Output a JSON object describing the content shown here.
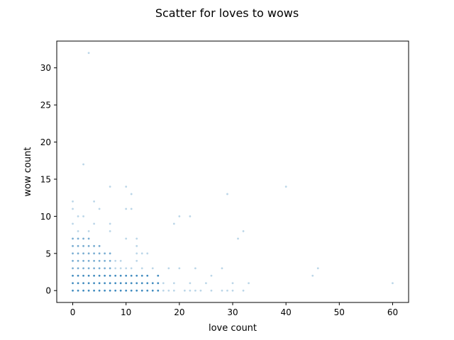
{
  "chart_data": {
    "type": "scatter",
    "title": "Scatter for loves to wows",
    "xlabel": "love count",
    "ylabel": "wow count",
    "xlim": [
      -3,
      63
    ],
    "ylim": [
      -1.6,
      33.6
    ],
    "xticks": [
      "0",
      "10",
      "20",
      "30",
      "40",
      "50",
      "60"
    ],
    "yticks": [
      "0",
      "5",
      "10",
      "15",
      "20",
      "25",
      "30"
    ],
    "grid": false,
    "color": "#1f77b4",
    "points": [
      [
        3,
        32
      ],
      [
        2,
        17
      ],
      [
        7,
        14
      ],
      [
        10,
        14
      ],
      [
        40,
        14
      ],
      [
        11,
        13
      ],
      [
        29,
        13
      ],
      [
        0,
        12
      ],
      [
        4,
        12
      ],
      [
        0,
        11
      ],
      [
        5,
        11
      ],
      [
        10,
        11
      ],
      [
        11,
        11
      ],
      [
        1,
        10
      ],
      [
        2,
        10
      ],
      [
        20,
        10
      ],
      [
        22,
        10
      ],
      [
        0,
        9
      ],
      [
        4,
        9
      ],
      [
        7,
        9
      ],
      [
        19,
        9
      ],
      [
        1,
        8
      ],
      [
        3,
        8
      ],
      [
        7,
        8
      ],
      [
        32,
        8
      ],
      [
        0,
        7
      ],
      [
        1,
        7
      ],
      [
        2,
        7
      ],
      [
        3,
        7
      ],
      [
        10,
        7
      ],
      [
        12,
        7
      ],
      [
        31,
        7
      ],
      [
        0,
        6
      ],
      [
        1,
        6
      ],
      [
        2,
        6
      ],
      [
        3,
        6
      ],
      [
        4,
        6
      ],
      [
        5,
        6
      ],
      [
        12,
        6
      ],
      [
        0,
        5
      ],
      [
        1,
        5
      ],
      [
        2,
        5
      ],
      [
        3,
        5
      ],
      [
        4,
        5
      ],
      [
        5,
        5
      ],
      [
        6,
        5
      ],
      [
        7,
        5
      ],
      [
        12,
        5
      ],
      [
        13,
        5
      ],
      [
        14,
        5
      ],
      [
        0,
        4
      ],
      [
        1,
        4
      ],
      [
        2,
        4
      ],
      [
        3,
        4
      ],
      [
        4,
        4
      ],
      [
        5,
        4
      ],
      [
        6,
        4
      ],
      [
        7,
        4
      ],
      [
        8,
        4
      ],
      [
        9,
        4
      ],
      [
        12,
        4
      ],
      [
        0,
        3
      ],
      [
        1,
        3
      ],
      [
        2,
        3
      ],
      [
        3,
        3
      ],
      [
        4,
        3
      ],
      [
        5,
        3
      ],
      [
        6,
        3
      ],
      [
        7,
        3
      ],
      [
        8,
        3
      ],
      [
        9,
        3
      ],
      [
        10,
        3
      ],
      [
        11,
        3
      ],
      [
        13,
        3
      ],
      [
        15,
        3
      ],
      [
        18,
        3
      ],
      [
        20,
        3
      ],
      [
        23,
        3
      ],
      [
        28,
        3
      ],
      [
        46,
        3
      ],
      [
        0,
        2
      ],
      [
        1,
        2
      ],
      [
        2,
        2
      ],
      [
        3,
        2
      ],
      [
        4,
        2
      ],
      [
        5,
        2
      ],
      [
        6,
        2
      ],
      [
        7,
        2
      ],
      [
        8,
        2
      ],
      [
        9,
        2
      ],
      [
        10,
        2
      ],
      [
        11,
        2
      ],
      [
        12,
        2
      ],
      [
        13,
        2
      ],
      [
        14,
        2
      ],
      [
        16,
        2
      ],
      [
        26,
        2
      ],
      [
        45,
        2
      ],
      [
        0,
        1
      ],
      [
        1,
        1
      ],
      [
        2,
        1
      ],
      [
        3,
        1
      ],
      [
        4,
        1
      ],
      [
        5,
        1
      ],
      [
        6,
        1
      ],
      [
        7,
        1
      ],
      [
        8,
        1
      ],
      [
        9,
        1
      ],
      [
        10,
        1
      ],
      [
        11,
        1
      ],
      [
        12,
        1
      ],
      [
        13,
        1
      ],
      [
        14,
        1
      ],
      [
        15,
        1
      ],
      [
        16,
        1
      ],
      [
        17,
        1
      ],
      [
        19,
        1
      ],
      [
        22,
        1
      ],
      [
        25,
        1
      ],
      [
        30,
        1
      ],
      [
        33,
        1
      ],
      [
        60,
        1
      ],
      [
        0,
        0
      ],
      [
        1,
        0
      ],
      [
        2,
        0
      ],
      [
        3,
        0
      ],
      [
        4,
        0
      ],
      [
        5,
        0
      ],
      [
        6,
        0
      ],
      [
        7,
        0
      ],
      [
        8,
        0
      ],
      [
        9,
        0
      ],
      [
        10,
        0
      ],
      [
        11,
        0
      ],
      [
        12,
        0
      ],
      [
        13,
        0
      ],
      [
        14,
        0
      ],
      [
        15,
        0
      ],
      [
        16,
        0
      ],
      [
        17,
        0
      ],
      [
        18,
        0
      ],
      [
        19,
        0
      ],
      [
        21,
        0
      ],
      [
        22,
        0
      ],
      [
        23,
        0
      ],
      [
        24,
        0
      ],
      [
        26,
        0
      ],
      [
        28,
        0
      ],
      [
        29,
        0
      ],
      [
        30,
        0
      ],
      [
        32,
        0
      ]
    ]
  }
}
